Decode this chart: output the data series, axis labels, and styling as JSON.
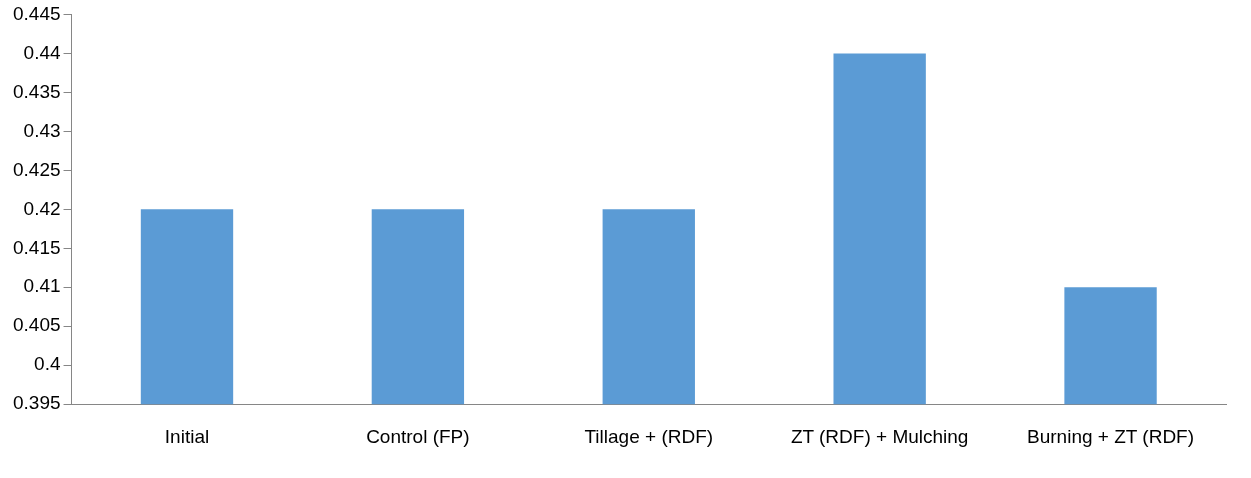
{
  "chart_data": {
    "type": "bar",
    "categories": [
      "Initial",
      "Control (FP)",
      "Tillage + (RDF)",
      "ZT (RDF) + Mulching",
      "Burning + ZT (RDF)"
    ],
    "values": [
      0.42,
      0.42,
      0.42,
      0.44,
      0.41
    ],
    "color": "#5b9bd5",
    "ylim": [
      0.395,
      0.445
    ],
    "yticks": [
      0.395,
      0.4,
      0.405,
      0.41,
      0.415,
      0.42,
      0.425,
      0.43,
      0.435,
      0.44,
      0.445
    ]
  }
}
